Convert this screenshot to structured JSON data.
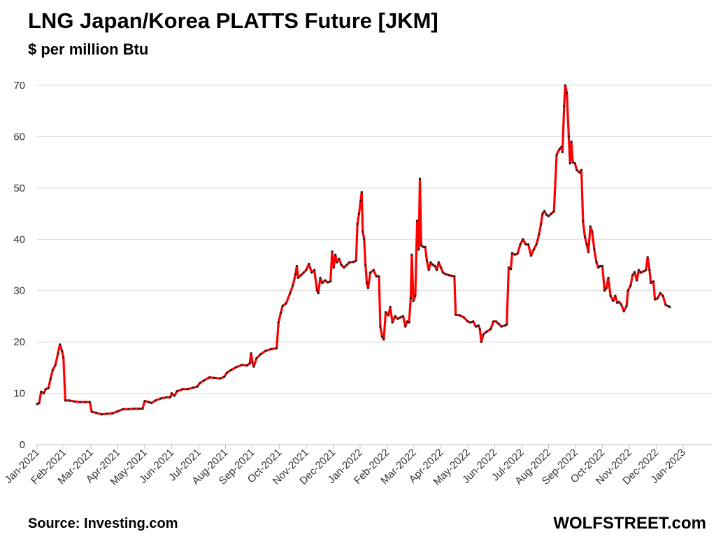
{
  "chart_data": {
    "type": "line",
    "title": "LNG Japan/Korea PLATTS Future [JKM]",
    "ylabel": "$ per million Btu",
    "xlabel": "",
    "ylim": [
      0,
      70
    ],
    "yticks": [
      0,
      10,
      20,
      30,
      40,
      50,
      60,
      70
    ],
    "grid": true,
    "xticks": [
      "Jan-2021",
      "Feb-2021",
      "Mar-2021",
      "Apr-2021",
      "May-2021",
      "Jun-2021",
      "Jul-2021",
      "Aug-2021",
      "Sep-2021",
      "Oct-2021",
      "Nov-2021",
      "Dec-2021",
      "Jan-2022",
      "Feb-2022",
      "Mar-2022",
      "Apr-2022",
      "May-2022",
      "Jun-2022",
      "Jul-2022",
      "Aug-2022",
      "Sep-2022",
      "Oct-2022",
      "Nov-2022",
      "Dec-2022",
      "Jan-2023"
    ],
    "x_unit": "months since Jan-2021",
    "series": [
      {
        "name": "JKM",
        "color": "#ff0000",
        "points": [
          [
            0.0,
            7.9
          ],
          [
            0.08,
            8.1
          ],
          [
            0.15,
            10.3
          ],
          [
            0.25,
            10.0
          ],
          [
            0.32,
            10.8
          ],
          [
            0.42,
            11.0
          ],
          [
            0.5,
            12.8
          ],
          [
            0.58,
            14.5
          ],
          [
            0.68,
            15.5
          ],
          [
            0.78,
            17.8
          ],
          [
            0.85,
            19.5
          ],
          [
            0.93,
            18.2
          ],
          [
            0.98,
            17.0
          ],
          [
            1.05,
            8.6
          ],
          [
            1.2,
            8.6
          ],
          [
            1.4,
            8.4
          ],
          [
            1.6,
            8.3
          ],
          [
            1.8,
            8.3
          ],
          [
            1.96,
            8.3
          ],
          [
            2.03,
            6.4
          ],
          [
            2.2,
            6.2
          ],
          [
            2.4,
            5.9
          ],
          [
            2.6,
            6.0
          ],
          [
            2.8,
            6.1
          ],
          [
            3.0,
            6.5
          ],
          [
            3.2,
            6.9
          ],
          [
            3.4,
            6.9
          ],
          [
            3.6,
            7.0
          ],
          [
            3.8,
            7.0
          ],
          [
            3.92,
            7.0
          ],
          [
            4.0,
            8.5
          ],
          [
            4.15,
            8.3
          ],
          [
            4.25,
            8.1
          ],
          [
            4.4,
            8.6
          ],
          [
            4.6,
            9.0
          ],
          [
            4.8,
            9.2
          ],
          [
            4.95,
            9.2
          ],
          [
            5.0,
            10.0
          ],
          [
            5.1,
            9.5
          ],
          [
            5.2,
            10.4
          ],
          [
            5.4,
            10.8
          ],
          [
            5.6,
            10.8
          ],
          [
            5.8,
            11.1
          ],
          [
            5.95,
            11.3
          ],
          [
            6.05,
            12.0
          ],
          [
            6.2,
            12.5
          ],
          [
            6.4,
            13.1
          ],
          [
            6.6,
            13.0
          ],
          [
            6.8,
            12.9
          ],
          [
            6.95,
            13.2
          ],
          [
            7.05,
            14.0
          ],
          [
            7.2,
            14.5
          ],
          [
            7.4,
            15.1
          ],
          [
            7.6,
            15.5
          ],
          [
            7.8,
            15.4
          ],
          [
            7.9,
            15.8
          ],
          [
            7.95,
            17.8
          ],
          [
            8.0,
            16.0
          ],
          [
            8.05,
            15.2
          ],
          [
            8.15,
            16.8
          ],
          [
            8.3,
            17.6
          ],
          [
            8.5,
            18.3
          ],
          [
            8.7,
            18.6
          ],
          [
            8.9,
            18.8
          ],
          [
            8.97,
            23.8
          ],
          [
            9.05,
            25.6
          ],
          [
            9.12,
            27.0
          ],
          [
            9.25,
            27.5
          ],
          [
            9.4,
            29.5
          ],
          [
            9.5,
            31.0
          ],
          [
            9.6,
            33.2
          ],
          [
            9.65,
            34.8
          ],
          [
            9.7,
            32.5
          ],
          [
            9.8,
            33.0
          ],
          [
            9.9,
            33.5
          ],
          [
            10.0,
            34.0
          ],
          [
            10.1,
            35.2
          ],
          [
            10.2,
            33.5
          ],
          [
            10.3,
            34.0
          ],
          [
            10.4,
            30.0
          ],
          [
            10.45,
            29.5
          ],
          [
            10.52,
            32.5
          ],
          [
            10.6,
            31.5
          ],
          [
            10.7,
            32.0
          ],
          [
            10.8,
            31.6
          ],
          [
            10.9,
            31.8
          ],
          [
            10.96,
            37.6
          ],
          [
            11.02,
            34.5
          ],
          [
            11.08,
            37.0
          ],
          [
            11.14,
            35.5
          ],
          [
            11.22,
            36.2
          ],
          [
            11.3,
            35.0
          ],
          [
            11.4,
            34.5
          ],
          [
            11.5,
            35.0
          ],
          [
            11.6,
            35.5
          ],
          [
            11.75,
            35.6
          ],
          [
            11.85,
            35.8
          ],
          [
            11.9,
            43.0
          ],
          [
            11.96,
            45.0
          ],
          [
            12.02,
            47.5
          ],
          [
            12.06,
            49.2
          ],
          [
            12.1,
            41.5
          ],
          [
            12.15,
            40.0
          ],
          [
            12.2,
            35.0
          ],
          [
            12.25,
            31.5
          ],
          [
            12.3,
            30.5
          ],
          [
            12.38,
            33.5
          ],
          [
            12.5,
            34.0
          ],
          [
            12.6,
            32.8
          ],
          [
            12.7,
            32.8
          ],
          [
            12.75,
            23.0
          ],
          [
            12.82,
            21.0
          ],
          [
            12.88,
            20.5
          ],
          [
            12.95,
            25.8
          ],
          [
            13.05,
            25.2
          ],
          [
            13.12,
            26.8
          ],
          [
            13.2,
            23.8
          ],
          [
            13.3,
            25.0
          ],
          [
            13.4,
            24.5
          ],
          [
            13.5,
            24.8
          ],
          [
            13.6,
            25.0
          ],
          [
            13.68,
            23.0
          ],
          [
            13.75,
            24.0
          ],
          [
            13.82,
            23.8
          ],
          [
            13.88,
            28.5
          ],
          [
            13.92,
            37.0
          ],
          [
            13.98,
            28.0
          ],
          [
            14.05,
            29.0
          ],
          [
            14.12,
            43.6
          ],
          [
            14.18,
            38.0
          ],
          [
            14.22,
            51.8
          ],
          [
            14.27,
            38.8
          ],
          [
            14.35,
            38.5
          ],
          [
            14.42,
            38.5
          ],
          [
            14.48,
            35.8
          ],
          [
            14.55,
            34.0
          ],
          [
            14.62,
            35.5
          ],
          [
            14.7,
            35.0
          ],
          [
            14.78,
            34.8
          ],
          [
            14.85,
            34.0
          ],
          [
            14.92,
            35.5
          ],
          [
            15.0,
            34.5
          ],
          [
            15.08,
            33.5
          ],
          [
            15.18,
            33.2
          ],
          [
            15.3,
            33.0
          ],
          [
            15.4,
            32.9
          ],
          [
            15.5,
            32.8
          ],
          [
            15.55,
            25.3
          ],
          [
            15.7,
            25.2
          ],
          [
            15.85,
            24.8
          ],
          [
            16.0,
            24.0
          ],
          [
            16.1,
            23.8
          ],
          [
            16.2,
            24.0
          ],
          [
            16.3,
            23.0
          ],
          [
            16.4,
            23.2
          ],
          [
            16.45,
            22.5
          ],
          [
            16.5,
            20.0
          ],
          [
            16.58,
            21.5
          ],
          [
            16.7,
            22.0
          ],
          [
            16.85,
            22.5
          ],
          [
            16.95,
            24.0
          ],
          [
            17.05,
            24.0
          ],
          [
            17.15,
            23.5
          ],
          [
            17.25,
            23.0
          ],
          [
            17.38,
            23.2
          ],
          [
            17.45,
            23.4
          ],
          [
            17.52,
            34.5
          ],
          [
            17.6,
            34.2
          ],
          [
            17.65,
            37.3
          ],
          [
            17.75,
            37.0
          ],
          [
            17.85,
            37.2
          ],
          [
            17.95,
            39.0
          ],
          [
            18.05,
            40.0
          ],
          [
            18.15,
            39.0
          ],
          [
            18.25,
            39.0
          ],
          [
            18.35,
            36.8
          ],
          [
            18.45,
            38.0
          ],
          [
            18.55,
            39.0
          ],
          [
            18.65,
            41.0
          ],
          [
            18.72,
            43.0
          ],
          [
            18.78,
            45.0
          ],
          [
            18.85,
            45.5
          ],
          [
            18.92,
            44.8
          ],
          [
            19.0,
            44.5
          ],
          [
            19.1,
            45.0
          ],
          [
            19.2,
            45.4
          ],
          [
            19.3,
            56.5
          ],
          [
            19.4,
            57.5
          ],
          [
            19.48,
            58.0
          ],
          [
            19.52,
            57.0
          ],
          [
            19.58,
            66.0
          ],
          [
            19.62,
            70.0
          ],
          [
            19.68,
            68.5
          ],
          [
            19.75,
            60.0
          ],
          [
            19.8,
            54.8
          ],
          [
            19.85,
            59.0
          ],
          [
            19.9,
            55.0
          ],
          [
            19.98,
            54.8
          ],
          [
            20.05,
            53.5
          ],
          [
            20.15,
            53.0
          ],
          [
            20.22,
            53.5
          ],
          [
            20.28,
            43.5
          ],
          [
            20.35,
            40.5
          ],
          [
            20.42,
            39.0
          ],
          [
            20.48,
            37.5
          ],
          [
            20.55,
            42.5
          ],
          [
            20.62,
            41.5
          ],
          [
            20.7,
            38.0
          ],
          [
            20.78,
            35.5
          ],
          [
            20.85,
            34.5
          ],
          [
            20.92,
            34.8
          ],
          [
            21.0,
            34.8
          ],
          [
            21.08,
            30.0
          ],
          [
            21.15,
            30.5
          ],
          [
            21.22,
            32.5
          ],
          [
            21.3,
            29.0
          ],
          [
            21.4,
            28.0
          ],
          [
            21.48,
            29.0
          ],
          [
            21.55,
            27.6
          ],
          [
            21.62,
            27.8
          ],
          [
            21.7,
            27.3
          ],
          [
            21.8,
            26.0
          ],
          [
            21.9,
            27.0
          ],
          [
            21.95,
            30.0
          ],
          [
            22.05,
            31.0
          ],
          [
            22.12,
            33.0
          ],
          [
            22.2,
            33.6
          ],
          [
            22.28,
            32.0
          ],
          [
            22.35,
            34.0
          ],
          [
            22.42,
            33.5
          ],
          [
            22.55,
            33.8
          ],
          [
            22.62,
            34.0
          ],
          [
            22.68,
            36.5
          ],
          [
            22.75,
            34.0
          ],
          [
            22.8,
            31.5
          ],
          [
            22.9,
            31.8
          ],
          [
            22.95,
            28.3
          ],
          [
            23.05,
            28.5
          ],
          [
            23.15,
            29.5
          ],
          [
            23.25,
            29.0
          ],
          [
            23.35,
            27.2
          ],
          [
            23.45,
            27.0
          ],
          [
            23.5,
            26.8
          ]
        ]
      }
    ]
  },
  "subtitle": "$ per million Btu",
  "source": "Source: Investing.com",
  "brand": "WOLFSTREET.com"
}
